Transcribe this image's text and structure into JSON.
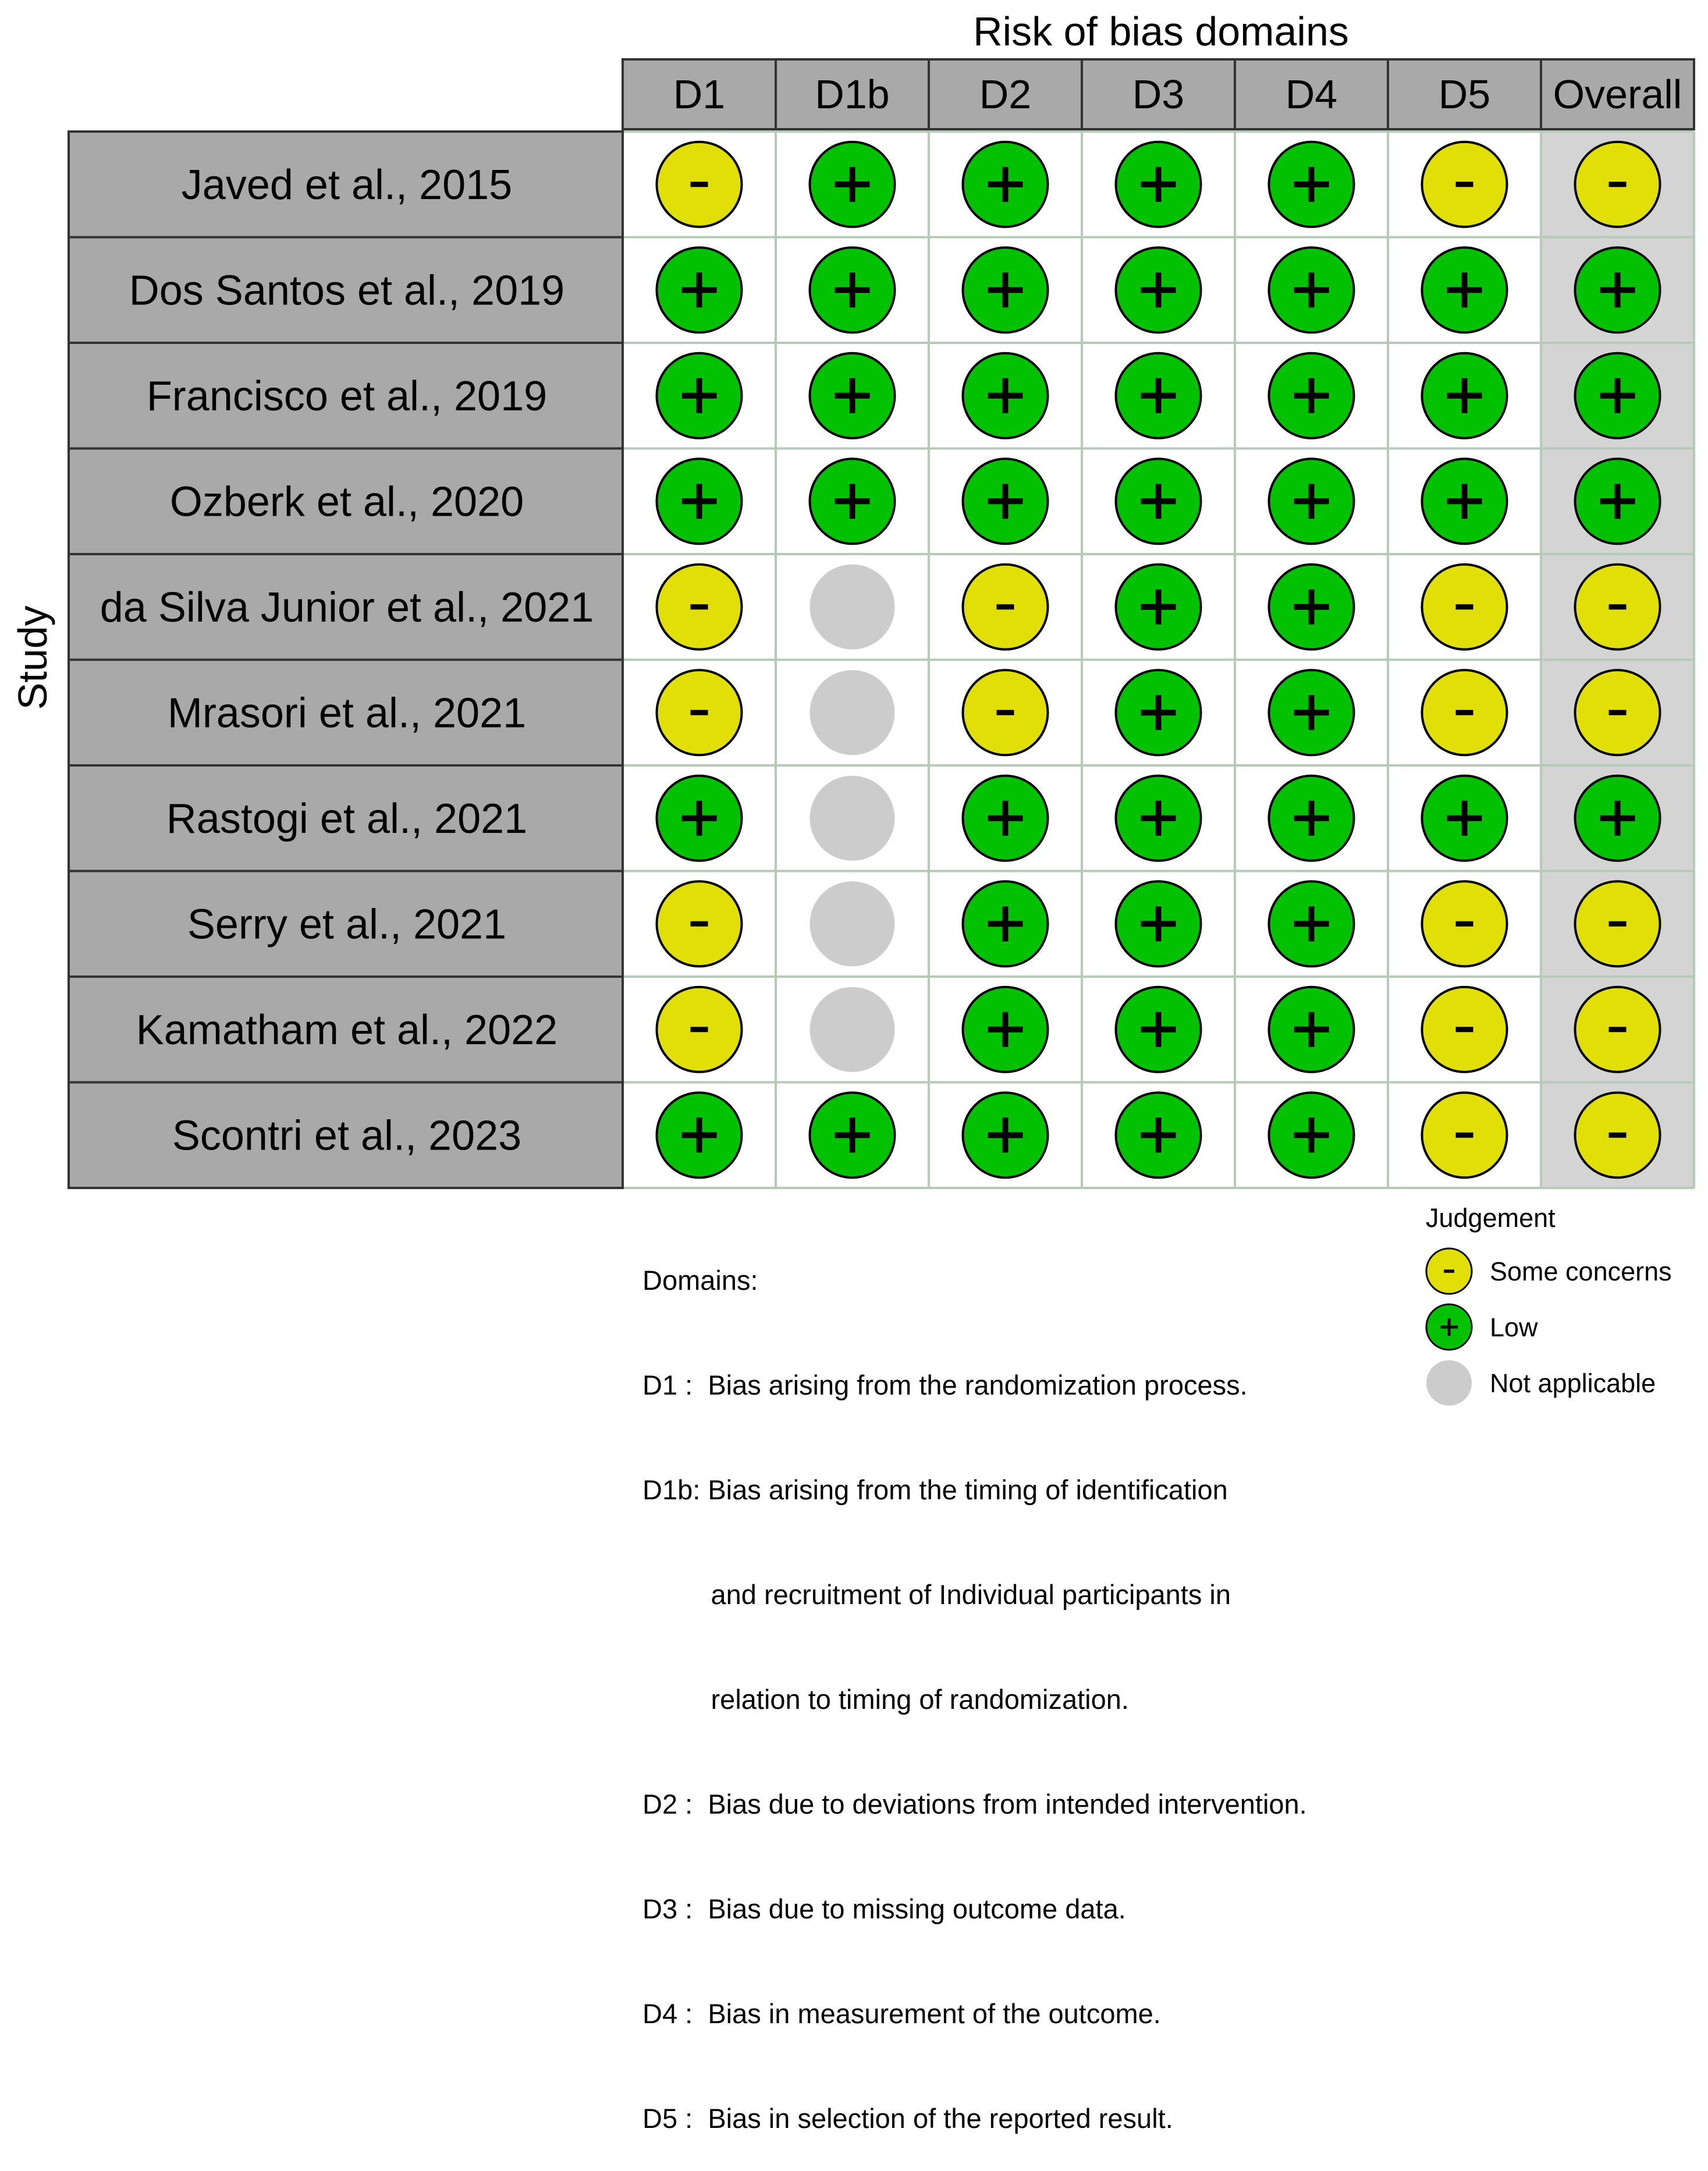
{
  "chart_data": {
    "type": "heatmap",
    "title": "Risk of bias domains",
    "ylabel": "Study",
    "domains": [
      "D1",
      "D1b",
      "D2",
      "D3",
      "D4",
      "D5",
      "Overall"
    ],
    "studies": [
      "Javed et al., 2015",
      "Dos Santos et al., 2019",
      "Francisco et al., 2019",
      "Ozberk et al., 2020",
      "da Silva Junior et al., 2021",
      "Mrasori et al., 2021",
      "Rastogi et al., 2021",
      "Serry et al., 2021",
      "Kamatham et al., 2022",
      "Scontri et al., 2023"
    ],
    "judgements": [
      [
        "Some concerns",
        "Low",
        "Low",
        "Low",
        "Low",
        "Some concerns",
        "Some concerns"
      ],
      [
        "Low",
        "Low",
        "Low",
        "Low",
        "Low",
        "Low",
        "Low"
      ],
      [
        "Low",
        "Low",
        "Low",
        "Low",
        "Low",
        "Low",
        "Low"
      ],
      [
        "Low",
        "Low",
        "Low",
        "Low",
        "Low",
        "Low",
        "Low"
      ],
      [
        "Some concerns",
        "Not applicable",
        "Some concerns",
        "Low",
        "Low",
        "Some concerns",
        "Some concerns"
      ],
      [
        "Some concerns",
        "Not applicable",
        "Some concerns",
        "Low",
        "Low",
        "Some concerns",
        "Some concerns"
      ],
      [
        "Low",
        "Not applicable",
        "Low",
        "Low",
        "Low",
        "Low",
        "Low"
      ],
      [
        "Some concerns",
        "Not applicable",
        "Low",
        "Low",
        "Low",
        "Some concerns",
        "Some concerns"
      ],
      [
        "Some concerns",
        "Not applicable",
        "Low",
        "Low",
        "Low",
        "Some concerns",
        "Some concerns"
      ],
      [
        "Low",
        "Low",
        "Low",
        "Low",
        "Low",
        "Some concerns",
        "Some concerns"
      ]
    ],
    "legend": {
      "title": "Judgement",
      "items": [
        {
          "label": "Some concerns",
          "symbol": "-",
          "color": "#e2df07"
        },
        {
          "label": "Low",
          "symbol": "+",
          "color": "#02c100"
        },
        {
          "label": "Not applicable",
          "symbol": "",
          "color": "#cccccc"
        }
      ]
    },
    "domain_notes": {
      "title": "Domains:",
      "lines": [
        "D1 :  Bias arising from the randomization process.",
        "D1b: Bias arising from the timing of identification",
        "         and recruitment of Individual participants in",
        "         relation to timing of randomization.",
        "D2 :  Bias due to deviations from intended intervention.",
        "D3 :  Bias due to missing outcome data.",
        "D4 :  Bias in measurement of the outcome.",
        "D5 :  Bias in selection of the reported result."
      ]
    }
  },
  "colors": {
    "header_fill": "#a9a9a9",
    "overall_fill": "#d4d4d4",
    "grid_line": "#b5cbb8",
    "some_concerns": "#e2df07",
    "low": "#02c100",
    "not_applicable": "#cccccc"
  }
}
